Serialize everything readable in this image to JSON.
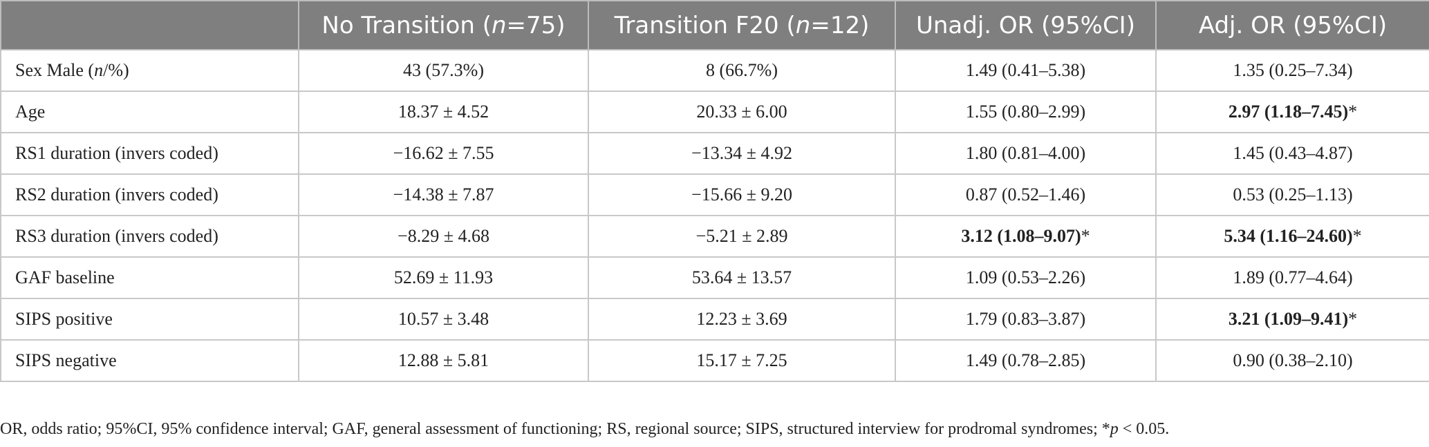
{
  "table": {
    "headers": [
      {
        "text": "",
        "italic": ""
      },
      {
        "pre": "No Transition (",
        "italic": "n",
        "post": "=75)"
      },
      {
        "pre": "Transition F20 (",
        "italic": "n",
        "post": "=12)"
      },
      {
        "pre": "Unadj. OR (95%CI)",
        "italic": "",
        "post": ""
      },
      {
        "pre": "Adj. OR (95%CI)",
        "italic": "",
        "post": ""
      }
    ],
    "rows": [
      {
        "label_pre": "Sex Male (",
        "label_italic": "n",
        "label_post": "/%)",
        "no_transition": "43 (57.3%)",
        "transition": "8 (66.7%)",
        "unadj": "1.49 (0.41–5.38)",
        "unadj_sig": "",
        "adj": "1.35 (0.25–7.34)",
        "adj_sig": ""
      },
      {
        "label_pre": "Age",
        "label_italic": "",
        "label_post": "",
        "no_transition": "18.37 ± 4.52",
        "transition": "20.33 ± 6.00",
        "unadj": "1.55 (0.80–2.99)",
        "unadj_sig": "",
        "adj": "2.97 (1.18–7.45)",
        "adj_sig": "*"
      },
      {
        "label_pre": "RS1 duration (invers coded)",
        "label_italic": "",
        "label_post": "",
        "no_transition": "−16.62 ± 7.55",
        "transition": "−13.34 ± 4.92",
        "unadj": "1.80 (0.81–4.00)",
        "unadj_sig": "",
        "adj": "1.45 (0.43–4.87)",
        "adj_sig": ""
      },
      {
        "label_pre": "RS2 duration (invers coded)",
        "label_italic": "",
        "label_post": "",
        "no_transition": "−14.38 ± 7.87",
        "transition": "−15.66 ± 9.20",
        "unadj": "0.87 (0.52–1.46)",
        "unadj_sig": "",
        "adj": "0.53 (0.25–1.13)",
        "adj_sig": ""
      },
      {
        "label_pre": "RS3 duration (invers coded)",
        "label_italic": "",
        "label_post": "",
        "no_transition": "−8.29 ± 4.68",
        "transition": "−5.21 ± 2.89",
        "unadj": "3.12 (1.08–9.07)",
        "unadj_sig": "*",
        "adj": "5.34 (1.16–24.60)",
        "adj_sig": "*"
      },
      {
        "label_pre": "GAF baseline",
        "label_italic": "",
        "label_post": "",
        "no_transition": "52.69 ± 11.93",
        "transition": "53.64 ± 13.57",
        "unadj": "1.09 (0.53–2.26)",
        "unadj_sig": "",
        "adj": "1.89 (0.77–4.64)",
        "adj_sig": ""
      },
      {
        "label_pre": "SIPS positive",
        "label_italic": "",
        "label_post": "",
        "no_transition": "10.57 ± 3.48",
        "transition": "12.23 ± 3.69",
        "unadj": "1.79 (0.83–3.87)",
        "unadj_sig": "",
        "adj": "3.21 (1.09–9.41)",
        "adj_sig": "*"
      },
      {
        "label_pre": "SIPS negative",
        "label_italic": "",
        "label_post": "",
        "no_transition": "12.88 ± 5.81",
        "transition": "15.17 ± 7.25",
        "unadj": "1.49 (0.78–2.85)",
        "unadj_sig": "",
        "adj": "0.90 (0.38–2.10)",
        "adj_sig": ""
      }
    ]
  },
  "footnote": {
    "pre": "OR, odds ratio; 95%CI, 95% confidence interval; GAF, general assessment of functioning; RS, regional source; SIPS, structured interview for prodromal syndromes; *",
    "italic": "p",
    "post": " < 0.05."
  },
  "colors": {
    "header_bg": "#7f7f7f",
    "header_text": "#ffffff",
    "grid": "#c8c8c8",
    "body_text": "#222222"
  }
}
